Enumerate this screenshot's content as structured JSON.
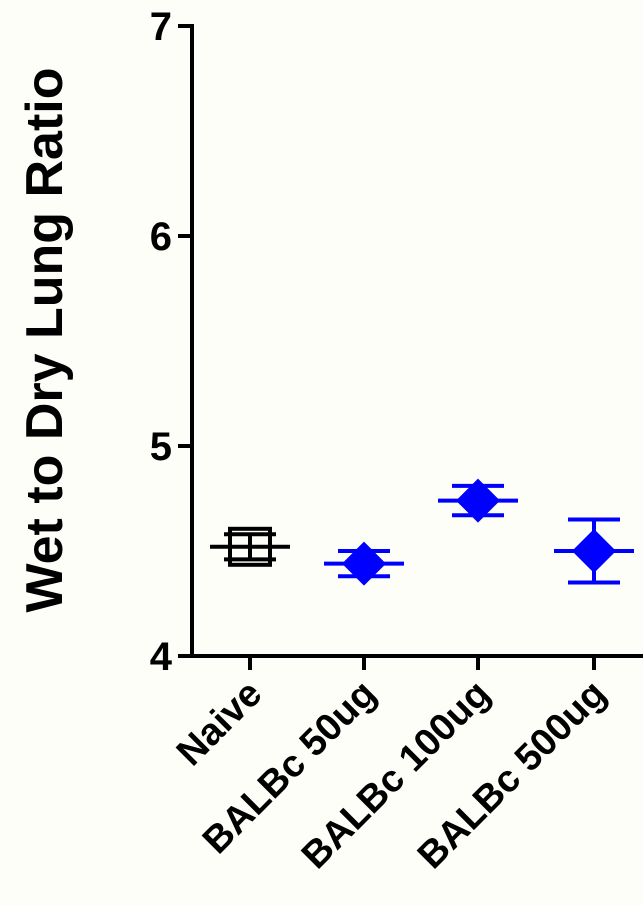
{
  "chart_data": {
    "type": "scatter",
    "title": "",
    "xlabel": "",
    "ylabel": "Wet to Dry  Lung Ratio",
    "ylim": [
      4,
      7
    ],
    "yticks": [
      4,
      5,
      6,
      7
    ],
    "grid": false,
    "categories": [
      "Naive",
      "BALBc 50ug",
      "BALBc 100ug",
      "BALBc 500ug"
    ],
    "series": [
      {
        "values": [
          4.52,
          4.44,
          4.74,
          4.5
        ],
        "err_low": [
          4.46,
          4.38,
          4.67,
          4.35
        ],
        "err_high": [
          4.58,
          4.5,
          4.81,
          4.65
        ],
        "markers": [
          "open-square",
          "diamond",
          "diamond",
          "diamond"
        ],
        "colors": [
          "#000000",
          "#0000ff",
          "#0000ff",
          "#0000ff"
        ]
      }
    ]
  }
}
